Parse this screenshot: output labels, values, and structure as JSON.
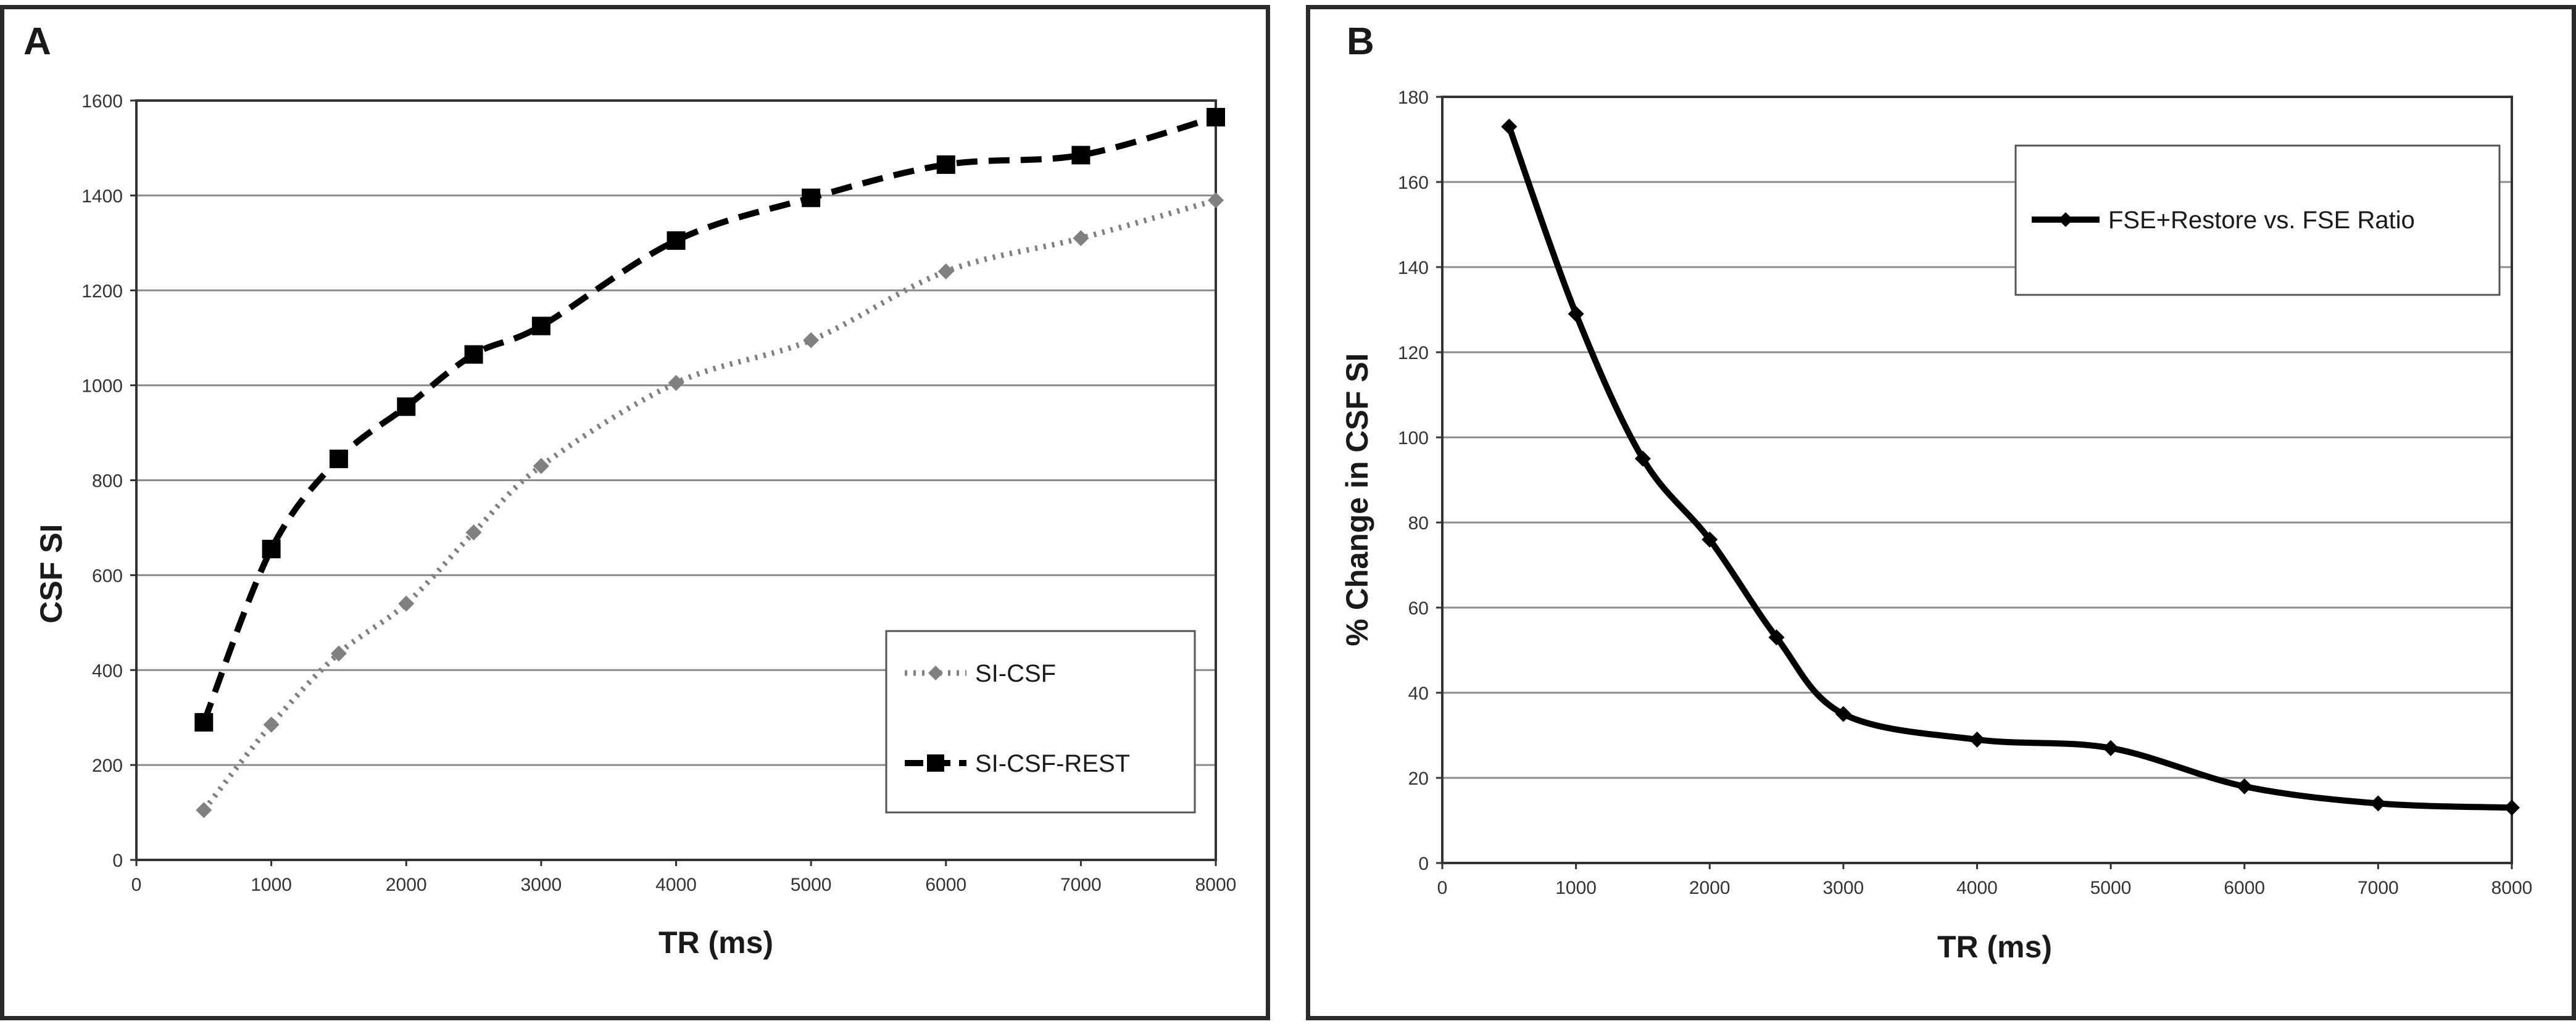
{
  "chart_data": [
    {
      "type": "line",
      "panel_label": "A",
      "xlabel": "TR (ms)",
      "ylabel": "CSF SI",
      "xlim": [
        0,
        8000
      ],
      "ylim": [
        0,
        1600
      ],
      "xticks": [
        0,
        1000,
        2000,
        3000,
        4000,
        5000,
        6000,
        7000,
        8000
      ],
      "yticks": [
        0,
        200,
        400,
        600,
        800,
        1000,
        1200,
        1400,
        1600
      ],
      "grid": "horizontal",
      "legend_position": "bottom-right",
      "series": [
        {
          "name": "SI-CSF",
          "style": "dotted",
          "marker": "diamond",
          "color": "#808080",
          "x": [
            500,
            1000,
            1500,
            2000,
            2500,
            3000,
            4000,
            5000,
            6000,
            7000,
            8000
          ],
          "values": [
            105,
            285,
            435,
            540,
            690,
            830,
            1005,
            1095,
            1240,
            1310,
            1390
          ]
        },
        {
          "name": "SI-CSF-REST",
          "style": "dashed",
          "marker": "square",
          "color": "#000000",
          "x": [
            500,
            1000,
            1500,
            2000,
            2500,
            3000,
            4000,
            5000,
            6000,
            7000,
            8000
          ],
          "values": [
            290,
            655,
            845,
            955,
            1065,
            1125,
            1305,
            1395,
            1465,
            1485,
            1565
          ]
        }
      ]
    },
    {
      "type": "line",
      "panel_label": "B",
      "xlabel": "TR (ms)",
      "ylabel": "% Change in CSF SI",
      "xlim": [
        0,
        8000
      ],
      "ylim": [
        0,
        180
      ],
      "xticks": [
        0,
        1000,
        2000,
        3000,
        4000,
        5000,
        6000,
        7000,
        8000
      ],
      "yticks": [
        0,
        20,
        40,
        60,
        80,
        100,
        120,
        140,
        160,
        180
      ],
      "grid": "horizontal",
      "legend_position": "top-right",
      "series": [
        {
          "name": "FSE+Restore vs. FSE Ratio",
          "style": "solid-smooth",
          "marker": "diamond",
          "color": "#000000",
          "x": [
            500,
            1000,
            1500,
            2000,
            2500,
            3000,
            4000,
            5000,
            6000,
            7000,
            8000
          ],
          "values": [
            173,
            129,
            95,
            76,
            53,
            35,
            29,
            27,
            18,
            14,
            13
          ]
        }
      ]
    }
  ]
}
